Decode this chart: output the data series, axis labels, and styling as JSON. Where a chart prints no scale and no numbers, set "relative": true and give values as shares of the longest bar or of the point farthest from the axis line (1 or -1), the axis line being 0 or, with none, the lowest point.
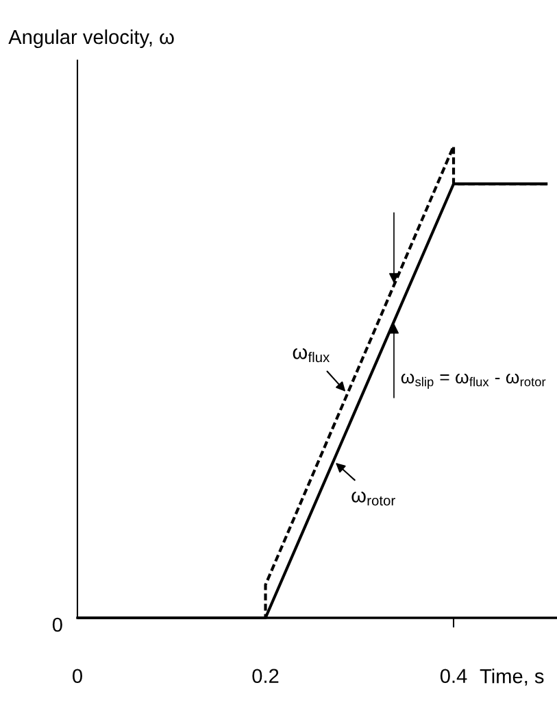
{
  "chart_data": {
    "type": "line",
    "relative": true,
    "xlabel": "Time, s",
    "ylabel": "Angular velocity, ω",
    "xlim": [
      0,
      0.51
    ],
    "xticks": [
      0,
      0.2,
      0.4
    ],
    "series": [
      {
        "name": "ω$_{flux}$",
        "color": "#000000",
        "line_style": "dashed",
        "x": [
          0,
          0.2,
          0.2,
          0.4,
          0.4,
          0.5
        ],
        "values": [
          0,
          0,
          0.07,
          1,
          0.92,
          0.92
        ]
      },
      {
        "name": "ω$_{rotor}$",
        "color": "#000000",
        "line_style": "solid",
        "x": [
          0,
          0.2,
          0.4,
          0.5
        ],
        "values": [
          0,
          0,
          0.92,
          0.92
        ]
      }
    ],
    "annotations": [
      "ω$_{slip}$ = ω$_{flux}$ - ω$_{rotor}$",
      {
        "text": "0",
        "x": 0,
        "y": 0
      }
    ]
  }
}
